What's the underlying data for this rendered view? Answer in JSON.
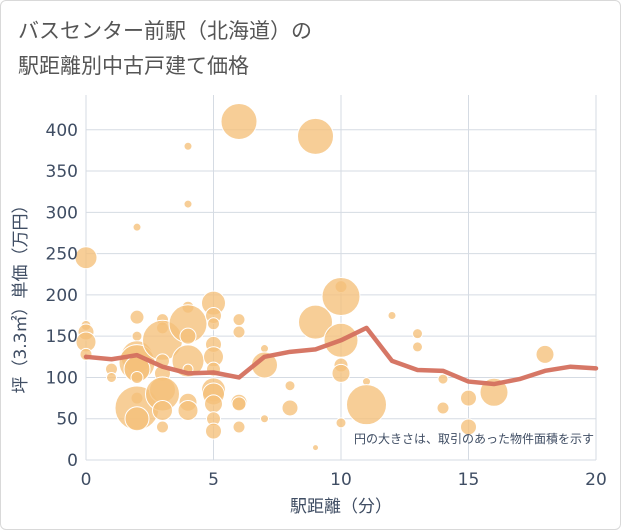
{
  "chart_data": {
    "type": "scatter",
    "title": "バスセンター前駅（北海道）の\n駅距離別中古戸建て価格",
    "xlabel": "駅距離（分）",
    "ylabel": "坪（3.3㎡）単価（万円）",
    "xlim": [
      0,
      20
    ],
    "ylim": [
      0,
      430
    ],
    "xticks": [
      "0",
      "5",
      "10",
      "15",
      "20"
    ],
    "yticks": [
      "0",
      "50",
      "100",
      "150",
      "200",
      "250",
      "300",
      "350",
      "400"
    ],
    "grid": true,
    "note": "円の大きさは、取引のあった物件面積を示す",
    "colors": {
      "bubble": "#f5c07a",
      "line": "#d4705e",
      "text": "#3f4d63"
    },
    "bubbles": [
      {
        "x": 0,
        "y": 245,
        "size": 11
      },
      {
        "x": 0,
        "y": 163,
        "size": 5
      },
      {
        "x": 0,
        "y": 155,
        "size": 8
      },
      {
        "x": 0,
        "y": 143,
        "size": 10
      },
      {
        "x": 0,
        "y": 128,
        "size": 6
      },
      {
        "x": 1,
        "y": 110,
        "size": 6
      },
      {
        "x": 1,
        "y": 100,
        "size": 5
      },
      {
        "x": 2,
        "y": 282,
        "size": 4
      },
      {
        "x": 2,
        "y": 173,
        "size": 7
      },
      {
        "x": 2,
        "y": 150,
        "size": 5
      },
      {
        "x": 2,
        "y": 125,
        "size": 16
      },
      {
        "x": 2,
        "y": 118,
        "size": 18
      },
      {
        "x": 2,
        "y": 110,
        "size": 13
      },
      {
        "x": 2,
        "y": 100,
        "size": 6
      },
      {
        "x": 2,
        "y": 75,
        "size": 6
      },
      {
        "x": 2,
        "y": 63,
        "size": 22
      },
      {
        "x": 2,
        "y": 50,
        "size": 12
      },
      {
        "x": 3,
        "y": 170,
        "size": 6
      },
      {
        "x": 3,
        "y": 160,
        "size": 6
      },
      {
        "x": 3,
        "y": 145,
        "size": 20
      },
      {
        "x": 3,
        "y": 120,
        "size": 7
      },
      {
        "x": 3,
        "y": 105,
        "size": 8
      },
      {
        "x": 3,
        "y": 85,
        "size": 13
      },
      {
        "x": 3,
        "y": 80,
        "size": 17
      },
      {
        "x": 3,
        "y": 60,
        "size": 10
      },
      {
        "x": 3,
        "y": 40,
        "size": 6
      },
      {
        "x": 4,
        "y": 380,
        "size": 4
      },
      {
        "x": 4,
        "y": 310,
        "size": 4
      },
      {
        "x": 4,
        "y": 185,
        "size": 6
      },
      {
        "x": 4,
        "y": 165,
        "size": 19
      },
      {
        "x": 4,
        "y": 150,
        "size": 8
      },
      {
        "x": 4,
        "y": 120,
        "size": 16
      },
      {
        "x": 4,
        "y": 110,
        "size": 5
      },
      {
        "x": 4,
        "y": 70,
        "size": 9
      },
      {
        "x": 4,
        "y": 60,
        "size": 10
      },
      {
        "x": 5,
        "y": 190,
        "size": 12
      },
      {
        "x": 5,
        "y": 175,
        "size": 8
      },
      {
        "x": 5,
        "y": 165,
        "size": 6
      },
      {
        "x": 5,
        "y": 140,
        "size": 8
      },
      {
        "x": 5,
        "y": 125,
        "size": 10
      },
      {
        "x": 5,
        "y": 110,
        "size": 7
      },
      {
        "x": 5,
        "y": 85,
        "size": 12
      },
      {
        "x": 5,
        "y": 80,
        "size": 11
      },
      {
        "x": 5,
        "y": 68,
        "size": 9
      },
      {
        "x": 5,
        "y": 50,
        "size": 7
      },
      {
        "x": 5,
        "y": 35,
        "size": 8
      },
      {
        "x": 6,
        "y": 410,
        "size": 18
      },
      {
        "x": 6,
        "y": 170,
        "size": 6
      },
      {
        "x": 6,
        "y": 155,
        "size": 6
      },
      {
        "x": 6,
        "y": 70,
        "size": 8
      },
      {
        "x": 6,
        "y": 68,
        "size": 7
      },
      {
        "x": 6,
        "y": 40,
        "size": 6
      },
      {
        "x": 7,
        "y": 135,
        "size": 4
      },
      {
        "x": 7,
        "y": 115,
        "size": 13
      },
      {
        "x": 7,
        "y": 50,
        "size": 4
      },
      {
        "x": 8,
        "y": 90,
        "size": 5
      },
      {
        "x": 8,
        "y": 63,
        "size": 8
      },
      {
        "x": 9,
        "y": 392,
        "size": 18
      },
      {
        "x": 9,
        "y": 167,
        "size": 17
      },
      {
        "x": 9,
        "y": 15,
        "size": 3
      },
      {
        "x": 10,
        "y": 210,
        "size": 6
      },
      {
        "x": 10,
        "y": 198,
        "size": 19
      },
      {
        "x": 10,
        "y": 145,
        "size": 17
      },
      {
        "x": 10,
        "y": 115,
        "size": 7
      },
      {
        "x": 10,
        "y": 105,
        "size": 9
      },
      {
        "x": 10,
        "y": 45,
        "size": 5
      },
      {
        "x": 11,
        "y": 95,
        "size": 4
      },
      {
        "x": 11,
        "y": 67,
        "size": 20
      },
      {
        "x": 12,
        "y": 175,
        "size": 4
      },
      {
        "x": 13,
        "y": 153,
        "size": 5
      },
      {
        "x": 13,
        "y": 137,
        "size": 5
      },
      {
        "x": 14,
        "y": 98,
        "size": 5
      },
      {
        "x": 14,
        "y": 63,
        "size": 6
      },
      {
        "x": 15,
        "y": 75,
        "size": 8
      },
      {
        "x": 15,
        "y": 40,
        "size": 8
      },
      {
        "x": 16,
        "y": 82,
        "size": 14
      },
      {
        "x": 18,
        "y": 128,
        "size": 9
      }
    ],
    "line": {
      "x": [
        0,
        1,
        2,
        3,
        4,
        5,
        6,
        7,
        8,
        9,
        10,
        11,
        12,
        13,
        14,
        15,
        16,
        17,
        18,
        19,
        20
      ],
      "y": [
        125,
        122,
        127,
        113,
        105,
        106,
        100,
        125,
        131,
        134,
        145,
        160,
        120,
        109,
        108,
        95,
        92,
        98,
        108,
        113,
        111
      ]
    }
  }
}
